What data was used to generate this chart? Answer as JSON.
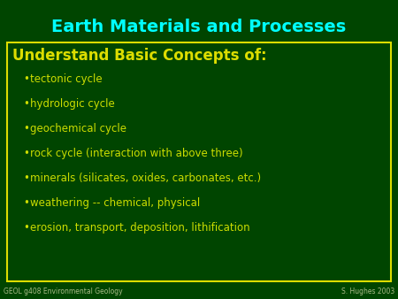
{
  "title": "Earth Materials and Processes",
  "title_color": "#00FFFF",
  "background_color": "#004500",
  "box_border_color": "#DDDD00",
  "box_heading": "Understand Basic Concepts of:",
  "box_heading_color": "#DDDD00",
  "bullet_color": "#CCDD00",
  "bullet_items": [
    "tectonic cycle",
    "hydrologic cycle",
    "geochemical cycle",
    "rock cycle (interaction with above three)",
    "minerals (silicates, oxides, carbonates, etc.)",
    "weathering -- chemical, physical",
    "erosion, transport, deposition, lithification"
  ],
  "footer_left": "GEOL g408 Environmental Geology",
  "footer_right": "S. Hughes 2003",
  "footer_color": "#AABB88",
  "title_fontsize": 14,
  "heading_fontsize": 12,
  "bullet_fontsize": 8.5,
  "footer_fontsize": 5.5
}
